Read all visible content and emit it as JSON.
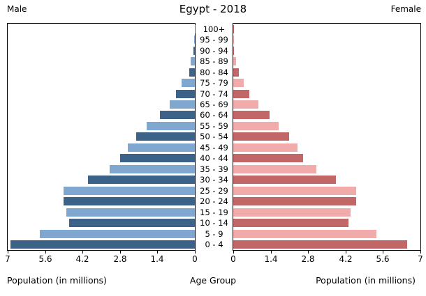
{
  "title": "Egypt - 2018",
  "header": {
    "male": "Male",
    "female": "Female"
  },
  "axis": {
    "xlabel_left": "Population (in millions)",
    "xlabel_center": "Age Group",
    "xlabel_right": "Population (in millions)",
    "left_ticks": [
      "7",
      "5.6",
      "4.2",
      "2.8",
      "1.4",
      "0"
    ],
    "right_ticks": [
      "0",
      "1.4",
      "2.8",
      "4.2",
      "5.6",
      "7"
    ],
    "xmax": 7
  },
  "colors": {
    "male_dark": "#3C6287",
    "male_light": "#7FA7CF",
    "female_dark": "#C26768",
    "female_light": "#F2ABAB",
    "axis_line": "#000000",
    "background": "#FFFFFF"
  },
  "chart_data": {
    "type": "bar",
    "subtype": "population-pyramid",
    "orientation": "horizontal",
    "title": "Egypt - 2018",
    "xlabel": "Population (in millions)",
    "ylabel": "Age Group",
    "xlim_each_side": [
      0,
      7
    ],
    "grid": false,
    "note": "categories listed youngest (bottom of pyramid) to oldest (top); bars alternate dark/light shades, values in millions",
    "categories": [
      "0 - 4",
      "5 - 9",
      "10 - 14",
      "15 - 19",
      "20 - 24",
      "25 - 29",
      "30 - 34",
      "35 - 39",
      "40 - 44",
      "45 - 49",
      "50 - 54",
      "55 - 59",
      "60 - 64",
      "65 - 69",
      "70 - 74",
      "75 - 79",
      "80 - 84",
      "85 - 89",
      "90 - 94",
      "95 - 99",
      "100+"
    ],
    "series": [
      {
        "name": "Male",
        "side": "left",
        "values": [
          6.9,
          5.8,
          4.7,
          4.8,
          4.9,
          4.9,
          4.0,
          3.2,
          2.8,
          2.5,
          2.2,
          1.8,
          1.3,
          0.95,
          0.7,
          0.5,
          0.2,
          0.15,
          0.05,
          0.02,
          0.01
        ]
      },
      {
        "name": "Female",
        "side": "right",
        "values": [
          6.5,
          5.35,
          4.3,
          4.4,
          4.6,
          4.6,
          3.85,
          3.1,
          2.6,
          2.4,
          2.1,
          1.7,
          1.35,
          0.95,
          0.6,
          0.4,
          0.2,
          0.1,
          0.03,
          0.01,
          0.005
        ]
      }
    ]
  }
}
